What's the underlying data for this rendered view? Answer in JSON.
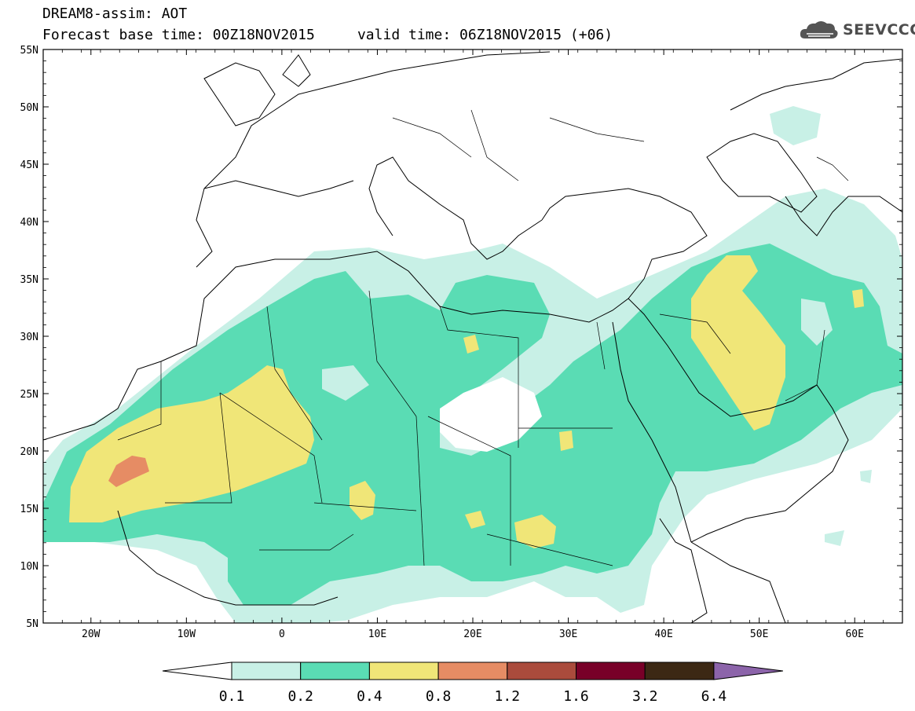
{
  "title": {
    "line1": "DREAM8-assim: AOT",
    "line2": "Forecast base time: 00Z18NOV2015     valid time: 06Z18NOV2015 (+06)"
  },
  "logo": {
    "text": "SEEVCCC",
    "icon": "cloud-icon"
  },
  "map": {
    "lat_range": [
      5,
      55
    ],
    "lon_range": [
      -25,
      65
    ],
    "lat_ticks": [
      "5N",
      "10N",
      "15N",
      "20N",
      "25N",
      "30N",
      "35N",
      "40N",
      "45N",
      "50N",
      "55N"
    ],
    "lon_ticks": [
      "20W",
      "10W",
      "0",
      "10E",
      "20E",
      "30E",
      "40E",
      "50E",
      "60E"
    ]
  },
  "colorbar": {
    "labels": [
      "0.1",
      "0.2",
      "0.4",
      "0.8",
      "1.2",
      "1.6",
      "3.2",
      "6.4"
    ],
    "colors": [
      "#c8f0e6",
      "#5adcb4",
      "#f0e678",
      "#e68c64",
      "#aa4b3c",
      "#780028",
      "#3c2814",
      "#8c64aa"
    ],
    "under_color": "#ffffff"
  }
}
